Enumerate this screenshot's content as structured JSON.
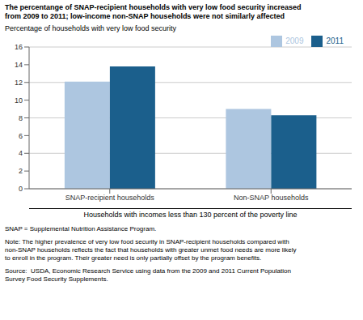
{
  "chart_data": {
    "type": "bar",
    "title": "The percentange of SNAP-recipient households with very low food security increased\nfrom 2009 to 2011; low-income non-SNAP households were not similarly affected",
    "ylabel": "Percentage of households with very low food security",
    "xlabel": "Households with incomes less than 130 percent of the poverty line",
    "categories": [
      "SNAP-recipient households",
      "Non-SNAP households"
    ],
    "series": [
      {
        "name": "2009",
        "color": "#adc6e0",
        "values": [
          12.1,
          9.0
        ]
      },
      {
        "name": "2011",
        "color": "#1b5f8c",
        "values": [
          13.8,
          8.3
        ]
      }
    ],
    "ylim": [
      0,
      16
    ],
    "yticks": [
      0,
      2,
      4,
      6,
      8,
      10,
      12,
      14,
      16
    ],
    "grid": true,
    "legend": "upper right",
    "annotations": [
      "SNAP = Supplemental Nutrition Assistance Program.",
      "Note: The higher prevalence of very low food security in SNAP-recipient households compared with\nnon-SNAP households reflects the fact that households with greater unmet food needs are more likely\nto enroll in the program. Their greater need is only partially offset by the program benefits.",
      "Source:  USDA, Economic Research Service using data from the 2009 and 2011 Current Population\nSurvey Food Security Supplements."
    ]
  }
}
